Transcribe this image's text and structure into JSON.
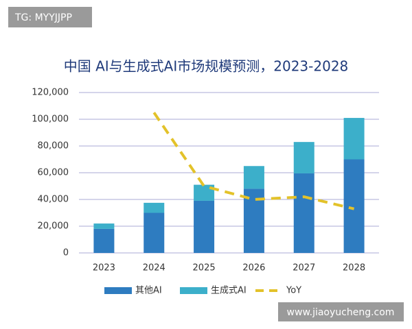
{
  "chart_data": {
    "type": "bar",
    "title": "中国 AI与生成式AI市场规模预测，2023-2028",
    "watermarks": [
      "TG: MYYJJPP",
      "www.jiaoyucheng.com"
    ],
    "categories": [
      "2023",
      "2024",
      "2025",
      "2026",
      "2027",
      "2028"
    ],
    "stacked": true,
    "series": [
      {
        "name": "其他AI",
        "color": "#2e7cc0",
        "type": "bar",
        "values": [
          18000,
          30000,
          39000,
          48000,
          59500,
          70000
        ]
      },
      {
        "name": "生成式AI",
        "color": "#3cafca",
        "type": "bar",
        "values": [
          4000,
          7500,
          12000,
          17000,
          23500,
          31000
        ]
      },
      {
        "name": "YoY",
        "color": "#e3c22a",
        "type": "line",
        "dashed": true,
        "values": [
          null,
          105000,
          50000,
          40000,
          42000,
          33000
        ]
      }
    ],
    "ylim": [
      0,
      120000
    ],
    "yticks": [
      0,
      {
        "value": 20000,
        "label": "20,000"
      },
      {
        "value": 40000,
        "label": "40,000"
      },
      {
        "value": 60000,
        "label": "60,000"
      },
      {
        "value": 80000,
        "label": "80,000"
      },
      {
        "value": 100000,
        "label": "100,000"
      },
      {
        "value": 120000,
        "label": "120,000"
      }
    ],
    "grid": true,
    "legend": "bottom"
  }
}
